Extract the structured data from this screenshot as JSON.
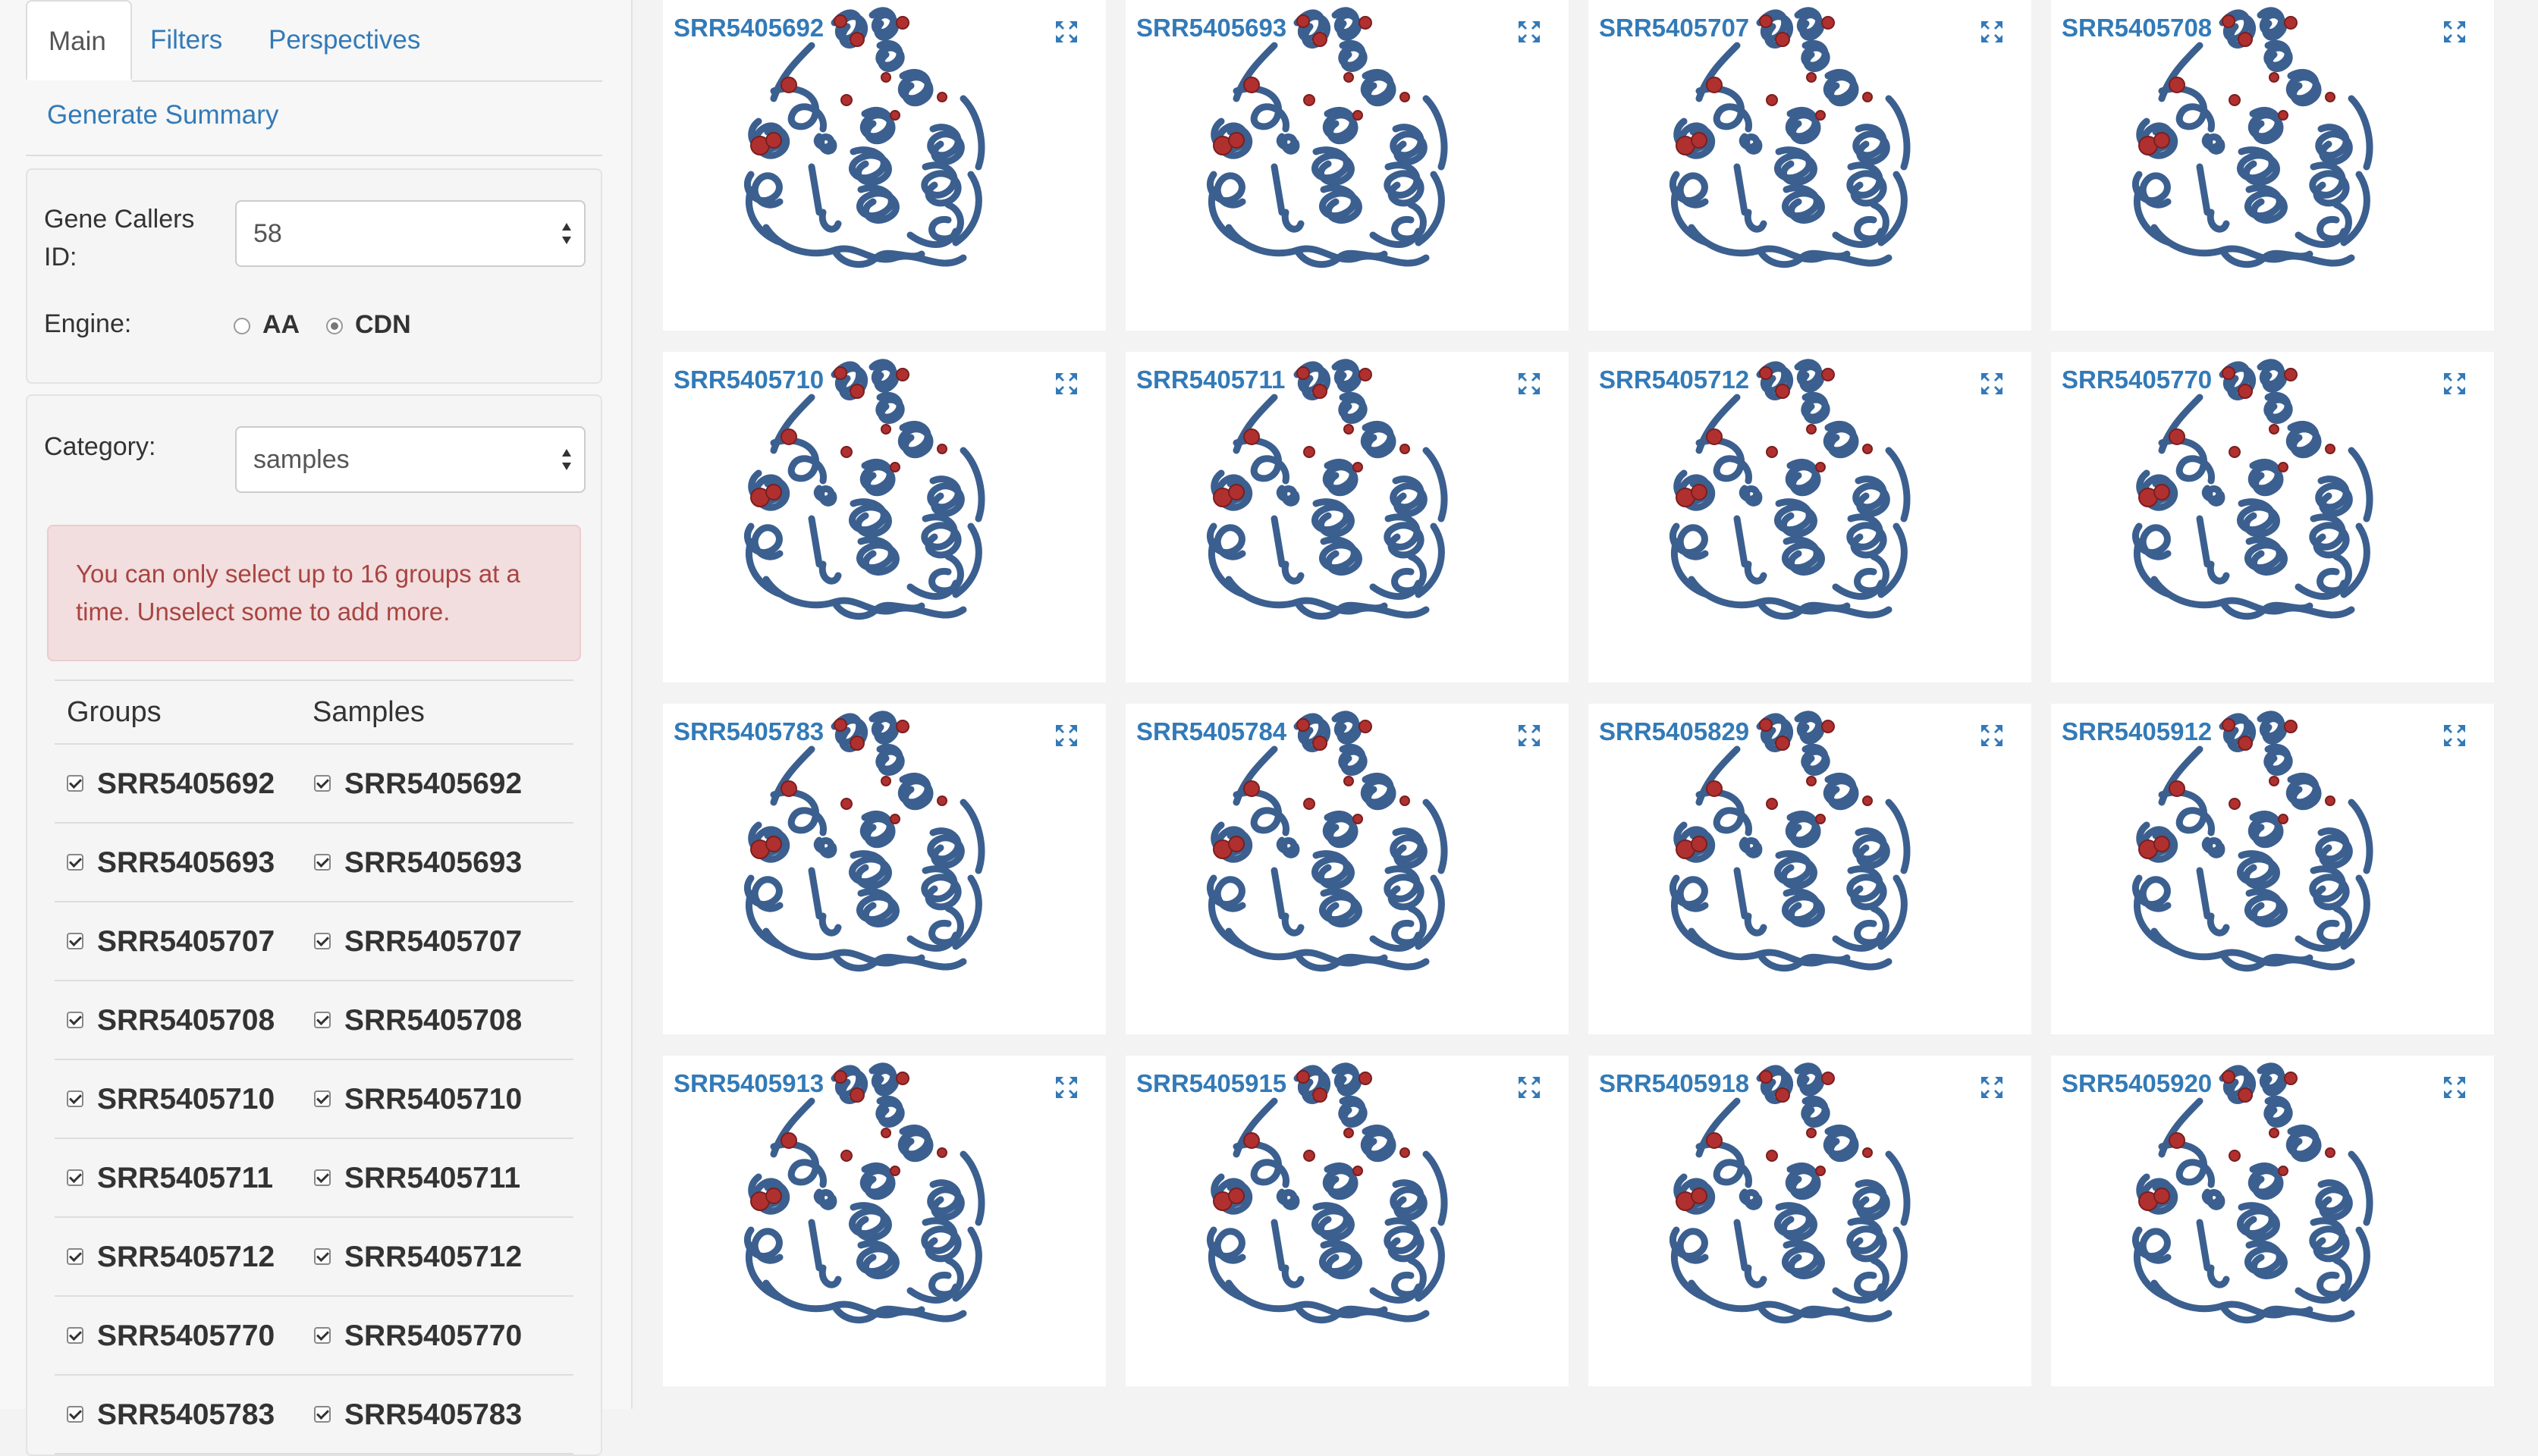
{
  "tabs": [
    {
      "label": "Main",
      "active": true
    },
    {
      "label": "Filters",
      "active": false
    },
    {
      "label": "Perspectives",
      "active": false
    }
  ],
  "generate_summary": "Generate Summary",
  "gene_callers": {
    "label": "Gene Callers ID:",
    "value": "58"
  },
  "engine": {
    "label": "Engine:",
    "options": [
      "AA",
      "CDN"
    ],
    "selected": "CDN"
  },
  "category": {
    "label": "Category:",
    "value": "samples"
  },
  "alert": {
    "text": "You can only select up to 16 groups at a time. Unselect some to add more."
  },
  "groups_table": {
    "headers": [
      "Groups",
      "Samples"
    ],
    "rows": [
      {
        "group": "SRR5405692",
        "sample": "SRR5405692"
      },
      {
        "group": "SRR5405693",
        "sample": "SRR5405693"
      },
      {
        "group": "SRR5405707",
        "sample": "SRR5405707"
      },
      {
        "group": "SRR5405708",
        "sample": "SRR5405708"
      },
      {
        "group": "SRR5405710",
        "sample": "SRR5405710"
      },
      {
        "group": "SRR5405711",
        "sample": "SRR5405711"
      },
      {
        "group": "SRR5405712",
        "sample": "SRR5405712"
      },
      {
        "group": "SRR5405770",
        "sample": "SRR5405770"
      },
      {
        "group": "SRR5405783",
        "sample": "SRR5405783"
      }
    ]
  },
  "structures": [
    "SRR5405692",
    "SRR5405693",
    "SRR5405707",
    "SRR5405708",
    "SRR5405710",
    "SRR5405711",
    "SRR5405712",
    "SRR5405770",
    "SRR5405783",
    "SRR5405784",
    "SRR5405829",
    "SRR5405912",
    "SRR5405913",
    "SRR5405915",
    "SRR5405918",
    "SRR5405920"
  ],
  "colors": {
    "link": "#337ab7",
    "protein": "#3b5f8f",
    "variant": "#b03030",
    "alert_bg": "#f2dede",
    "alert_text": "#a94442"
  },
  "icons": {
    "expand": "expand-icon",
    "protein": "protein-structure-icon"
  }
}
